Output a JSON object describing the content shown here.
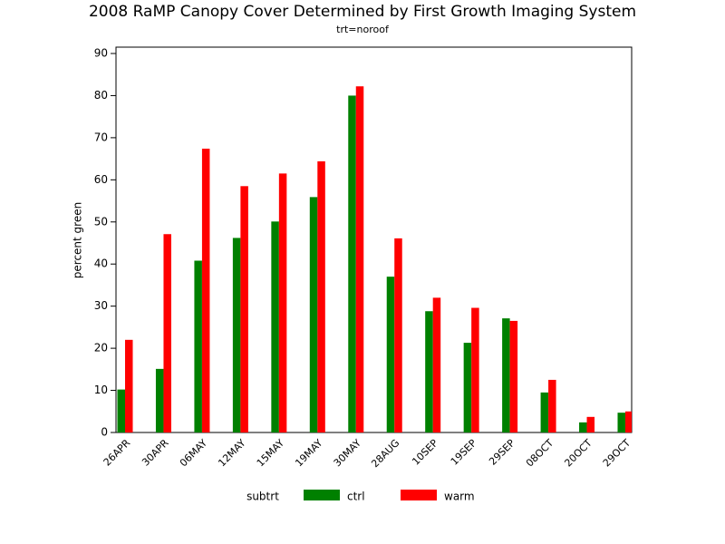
{
  "chart_data": {
    "type": "bar",
    "title": "2008 RaMP Canopy Cover Determined by First Growth Imaging System",
    "subtitle": "trt=noroof",
    "y_label": "percent green",
    "legend_title": "subtrt",
    "categories": [
      "26APR",
      "30APR",
      "06MAY",
      "12MAY",
      "15MAY",
      "19MAY",
      "30MAY",
      "28AUG",
      "10SEP",
      "19SEP",
      "29SEP",
      "08OCT",
      "20OCT",
      "29OCT"
    ],
    "series": [
      {
        "name": "ctrl",
        "color": "#008000",
        "values": [
          10.2,
          15.1,
          40.8,
          46.2,
          50.1,
          55.9,
          80.0,
          37.0,
          28.8,
          21.3,
          27.1,
          9.5,
          2.4,
          4.7
        ]
      },
      {
        "name": "warm",
        "color": "#ff0000",
        "values": [
          22.0,
          47.1,
          67.4,
          58.5,
          61.5,
          64.4,
          82.2,
          46.1,
          32.0,
          29.6,
          26.5,
          12.5,
          3.7,
          5.0
        ]
      }
    ],
    "ylim": [
      0,
      90
    ],
    "yticks": [
      0,
      10,
      20,
      30,
      40,
      50,
      60,
      70,
      80,
      90
    ]
  }
}
